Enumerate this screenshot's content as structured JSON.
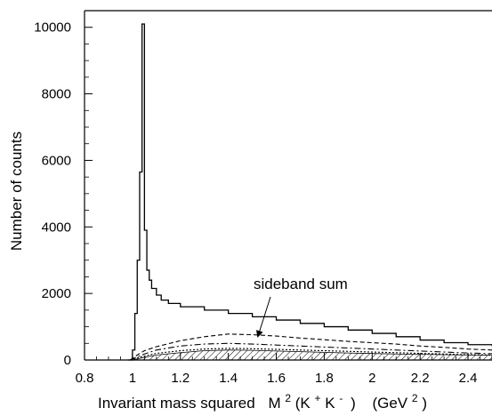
{
  "chart_data": {
    "type": "line",
    "xlabel_main": "Invariant mass squared",
    "xlabel_var": "M",
    "xlabel_sup2": "2",
    "xlabel_kk": "(K",
    "xlabel_plus": "+",
    "xlabel_k2": "K",
    "xlabel_minus": "-",
    "xlabel_close": ")",
    "xlabel_unit_open": "(GeV",
    "xlabel_unit_sup": "2",
    "xlabel_unit_close": ")",
    "ylabel": "Number of counts",
    "xlim": [
      0.8,
      2.5
    ],
    "ylim": [
      0,
      10500
    ],
    "x_ticks": [
      0.8,
      1.0,
      1.2,
      1.4,
      1.6,
      1.8,
      2.0,
      2.2,
      2.4
    ],
    "x_tick_labels": [
      "0.8",
      "1",
      "1.2",
      "1.4",
      "1.6",
      "1.8",
      "2",
      "2.2",
      "2.4"
    ],
    "y_ticks": [
      0,
      2000,
      4000,
      6000,
      8000,
      10000
    ],
    "y_tick_labels": [
      "0",
      "2000",
      "4000",
      "6000",
      "8000",
      "10000"
    ],
    "annotation": "sideband sum",
    "series": [
      {
        "style": "solid",
        "x": [
          0.98,
          1.0,
          1.01,
          1.02,
          1.03,
          1.04,
          1.05,
          1.06,
          1.07,
          1.08,
          1.1,
          1.12,
          1.15,
          1.2,
          1.3,
          1.4,
          1.5,
          1.6,
          1.7,
          1.8,
          1.9,
          2.0,
          2.1,
          2.2,
          2.3,
          2.4,
          2.5
        ],
        "values": [
          0,
          300,
          1400,
          3000,
          5650,
          10100,
          3900,
          2700,
          2400,
          2150,
          1950,
          1800,
          1700,
          1600,
          1500,
          1400,
          1300,
          1200,
          1100,
          1000,
          900,
          800,
          700,
          600,
          520,
          460,
          420
        ]
      },
      {
        "style": "dashed",
        "x": [
          0.99,
          1.02,
          1.05,
          1.1,
          1.2,
          1.3,
          1.4,
          1.5,
          1.6,
          1.7,
          1.8,
          1.9,
          2.0,
          2.1,
          2.2,
          2.3,
          2.4,
          2.5
        ],
        "values": [
          0,
          150,
          280,
          400,
          580,
          700,
          780,
          760,
          720,
          660,
          610,
          560,
          520,
          480,
          420,
          380,
          330,
          300
        ]
      },
      {
        "style": "dash-dot",
        "x": [
          0.99,
          1.02,
          1.05,
          1.1,
          1.2,
          1.3,
          1.4,
          1.5,
          1.6,
          1.7,
          1.8,
          1.9,
          2.0,
          2.1,
          2.2,
          2.3,
          2.4,
          2.5
        ],
        "values": [
          0,
          90,
          180,
          300,
          420,
          480,
          500,
          480,
          450,
          420,
          390,
          360,
          330,
          300,
          270,
          240,
          210,
          190
        ]
      },
      {
        "style": "dotted",
        "x": [
          0.99,
          1.02,
          1.05,
          1.1,
          1.2,
          1.3,
          1.4,
          1.5,
          1.6,
          1.7,
          1.8,
          1.9,
          2.0,
          2.1,
          2.2,
          2.3,
          2.4,
          2.5
        ],
        "values": [
          0,
          60,
          120,
          200,
          280,
          330,
          350,
          340,
          320,
          300,
          280,
          260,
          240,
          220,
          200,
          180,
          160,
          150
        ]
      }
    ],
    "hatched_region": {
      "x": [
        1.0,
        1.05,
        1.1,
        1.2,
        1.3,
        1.4,
        1.5,
        1.6,
        1.7,
        1.8,
        1.9,
        2.0,
        2.1,
        2.2,
        2.3,
        2.4,
        2.5
      ],
      "values": [
        0,
        80,
        150,
        220,
        280,
        300,
        290,
        270,
        250,
        230,
        210,
        195,
        180,
        170,
        160,
        150,
        140
      ]
    },
    "grid": false
  }
}
